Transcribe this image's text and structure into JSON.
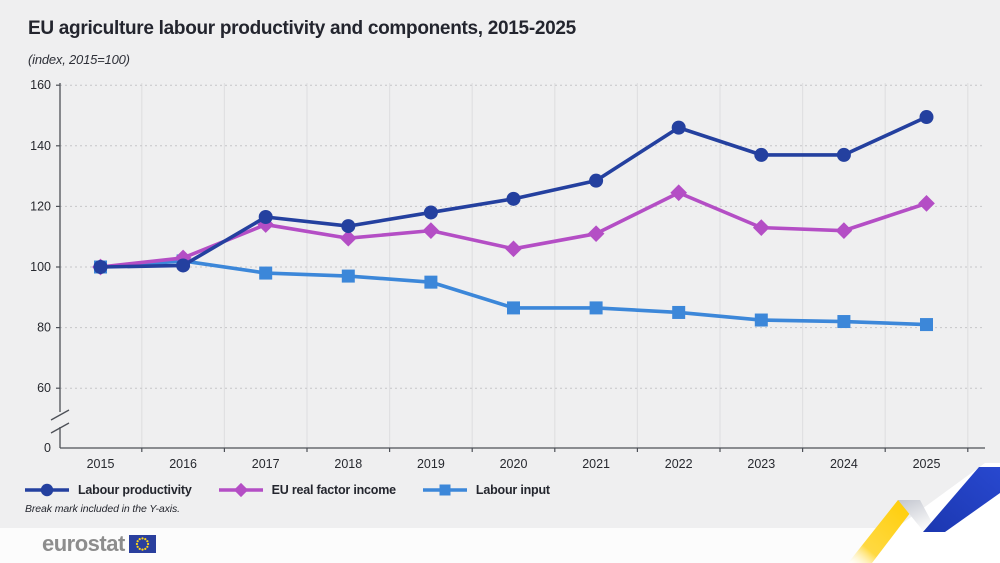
{
  "header": {
    "title": "EU agriculture labour productivity and components, 2015-2025",
    "subtitle": "(index, 2015=100)"
  },
  "chart_data": {
    "type": "line",
    "x": [
      "2015",
      "2016",
      "2017",
      "2018",
      "2019",
      "2020",
      "2021",
      "2022",
      "2023",
      "2024",
      "2025"
    ],
    "series": [
      {
        "name": "Labour productivity",
        "marker": "circle",
        "color": "#24409f",
        "values": [
          100,
          100.5,
          116.5,
          113.5,
          118,
          122.5,
          128.5,
          146,
          137,
          137,
          149.5
        ]
      },
      {
        "name": "EU real factor income",
        "marker": "diamond",
        "color": "#b44ec5",
        "values": [
          100,
          103,
          114,
          109.5,
          112,
          106,
          111,
          124.5,
          113,
          112,
          121
        ]
      },
      {
        "name": "Labour input",
        "marker": "square",
        "color": "#3c87d9",
        "values": [
          100,
          102,
          98,
          97,
          95,
          86.5,
          86.5,
          85,
          82.5,
          82,
          81
        ]
      }
    ],
    "yticks": [
      0,
      60,
      80,
      100,
      120,
      140,
      160
    ],
    "ylim": [
      60,
      160
    ],
    "y_axis_break": true,
    "grid": true,
    "legend_position": "bottom-left"
  },
  "footnote": "Break mark included in the Y-axis.",
  "footer": {
    "brand": "eurostat"
  },
  "colors": {
    "background": "#efeff0",
    "footer_bg": "#fcfcfc",
    "grid_dashed": "#c6c6c8",
    "grid_vertical": "#e0e0e2",
    "axis": "#4d5057",
    "text": "#27292f",
    "ribbon_yellow": "#ffcc00",
    "ribbon_blue": "#2343c3",
    "eu_flag_blue": "#2a3f9d",
    "eu_star_yellow": "#ffd617",
    "brand_gray": "#8d8d8d"
  }
}
